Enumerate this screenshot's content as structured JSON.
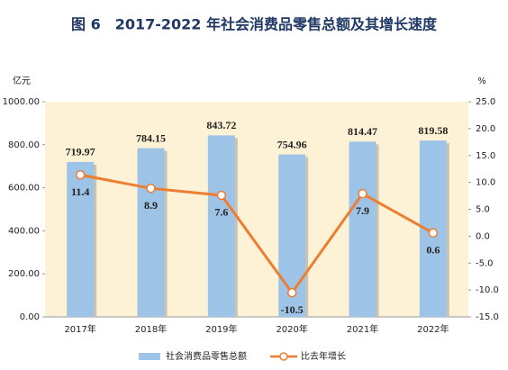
{
  "chart_data": {
    "type": "bar",
    "title": "图 6　2017-2022 年社会消费品零售总额及其增长速度",
    "y_label": "亿元",
    "y2_label": "%",
    "categories": [
      "2017年",
      "2018年",
      "2019年",
      "2020年",
      "2021年",
      "2022年"
    ],
    "series": [
      {
        "name": "社会消费品零售总额",
        "type": "bar",
        "color": "#9dc3e6",
        "values": [
          719.97,
          784.15,
          843.72,
          754.96,
          814.47,
          819.58
        ]
      },
      {
        "name": "比去年增长",
        "type": "line",
        "axis": "y2",
        "color": "#ed7d31",
        "values": [
          11.4,
          8.9,
          7.6,
          -10.5,
          7.9,
          0.6
        ]
      }
    ],
    "ylim": [
      0,
      1000
    ],
    "yticks": [
      {
        "value": 0,
        "label": "0.00"
      },
      {
        "value": 200,
        "label": "200.00"
      },
      {
        "value": 400,
        "label": "400.00"
      },
      {
        "value": 600,
        "label": "600.00"
      },
      {
        "value": 800,
        "label": "800.00"
      },
      {
        "value": 1000,
        "label": "1000.00"
      }
    ],
    "y2lim": [
      -15,
      25
    ],
    "y2ticks": [
      {
        "value": -15,
        "label": "-15.0"
      },
      {
        "value": -10,
        "label": "-10.0"
      },
      {
        "value": -5,
        "label": "-5.0"
      },
      {
        "value": 0,
        "label": "0.0"
      },
      {
        "value": 5,
        "label": "5.0"
      },
      {
        "value": 10,
        "label": "10.0"
      },
      {
        "value": 15,
        "label": "15.0"
      },
      {
        "value": 20,
        "label": "20.0"
      },
      {
        "value": 25,
        "label": "25.0"
      }
    ],
    "background": "#fdf2d6"
  }
}
